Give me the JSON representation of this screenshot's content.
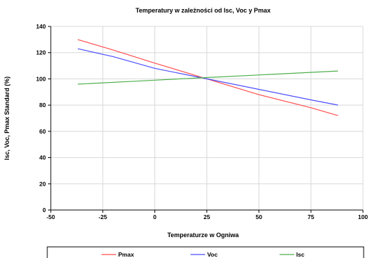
{
  "chart_data": {
    "type": "line",
    "title": "Temperatury w zależności od Isc, Voc y Pmax",
    "xlabel": "Temperaturze w Ogniwa",
    "ylabel": "Isc, Voc, Pmax Standard (%)",
    "xlim": [
      -50,
      100
    ],
    "ylim": [
      0,
      140
    ],
    "xticks": [
      -50,
      -25,
      0,
      25,
      50,
      75,
      100
    ],
    "yticks": [
      0,
      20,
      40,
      60,
      80,
      100,
      120,
      140
    ],
    "grid": true,
    "legend_position": "bottom",
    "series": [
      {
        "name": "Pmax",
        "color": "#ff4d4d",
        "x": [
          -37,
          -20,
          0,
          25,
          50,
          75,
          88
        ],
        "y": [
          130,
          122,
          112,
          100,
          88,
          78,
          72
        ]
      },
      {
        "name": "Voc",
        "color": "#4d4dff",
        "x": [
          -37,
          -20,
          0,
          25,
          50,
          75,
          88
        ],
        "y": [
          123,
          117,
          108,
          100,
          92,
          84,
          80
        ]
      },
      {
        "name": "Isc",
        "color": "#4daf4d",
        "x": [
          -37,
          0,
          25,
          50,
          88
        ],
        "y": [
          96,
          99,
          101,
          103,
          106
        ]
      }
    ]
  }
}
